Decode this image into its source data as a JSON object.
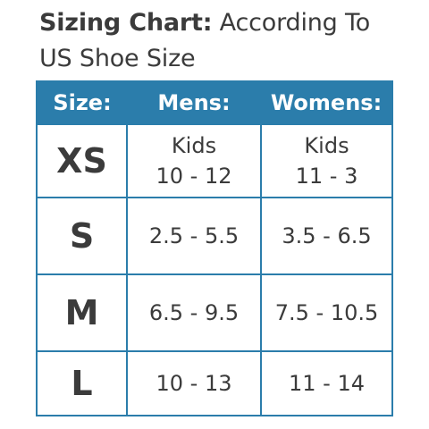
{
  "title": {
    "bold_part": "Sizing Chart:",
    "rest_line1": " According To",
    "line2": "US Shoe Size"
  },
  "header": {
    "size": "Size:",
    "mens": "Mens:",
    "womens": "Womens:"
  },
  "rows": [
    {
      "size": "XS",
      "mens_line1": "Kids",
      "mens_line2": "10 - 12",
      "womens_line1": "Kids",
      "womens_line2": "11 - 3"
    },
    {
      "size": "S",
      "mens": "2.5 - 5.5",
      "womens": "3.5 - 6.5"
    },
    {
      "size": "M",
      "mens": "6.5 - 9.5",
      "womens": "7.5 - 10.5"
    },
    {
      "size": "L",
      "mens": "10 - 13",
      "womens": "11 - 14"
    }
  ],
  "colors": {
    "accent": "#2b7dab",
    "text": "#3b3b3b",
    "header_text": "#ffffff"
  }
}
